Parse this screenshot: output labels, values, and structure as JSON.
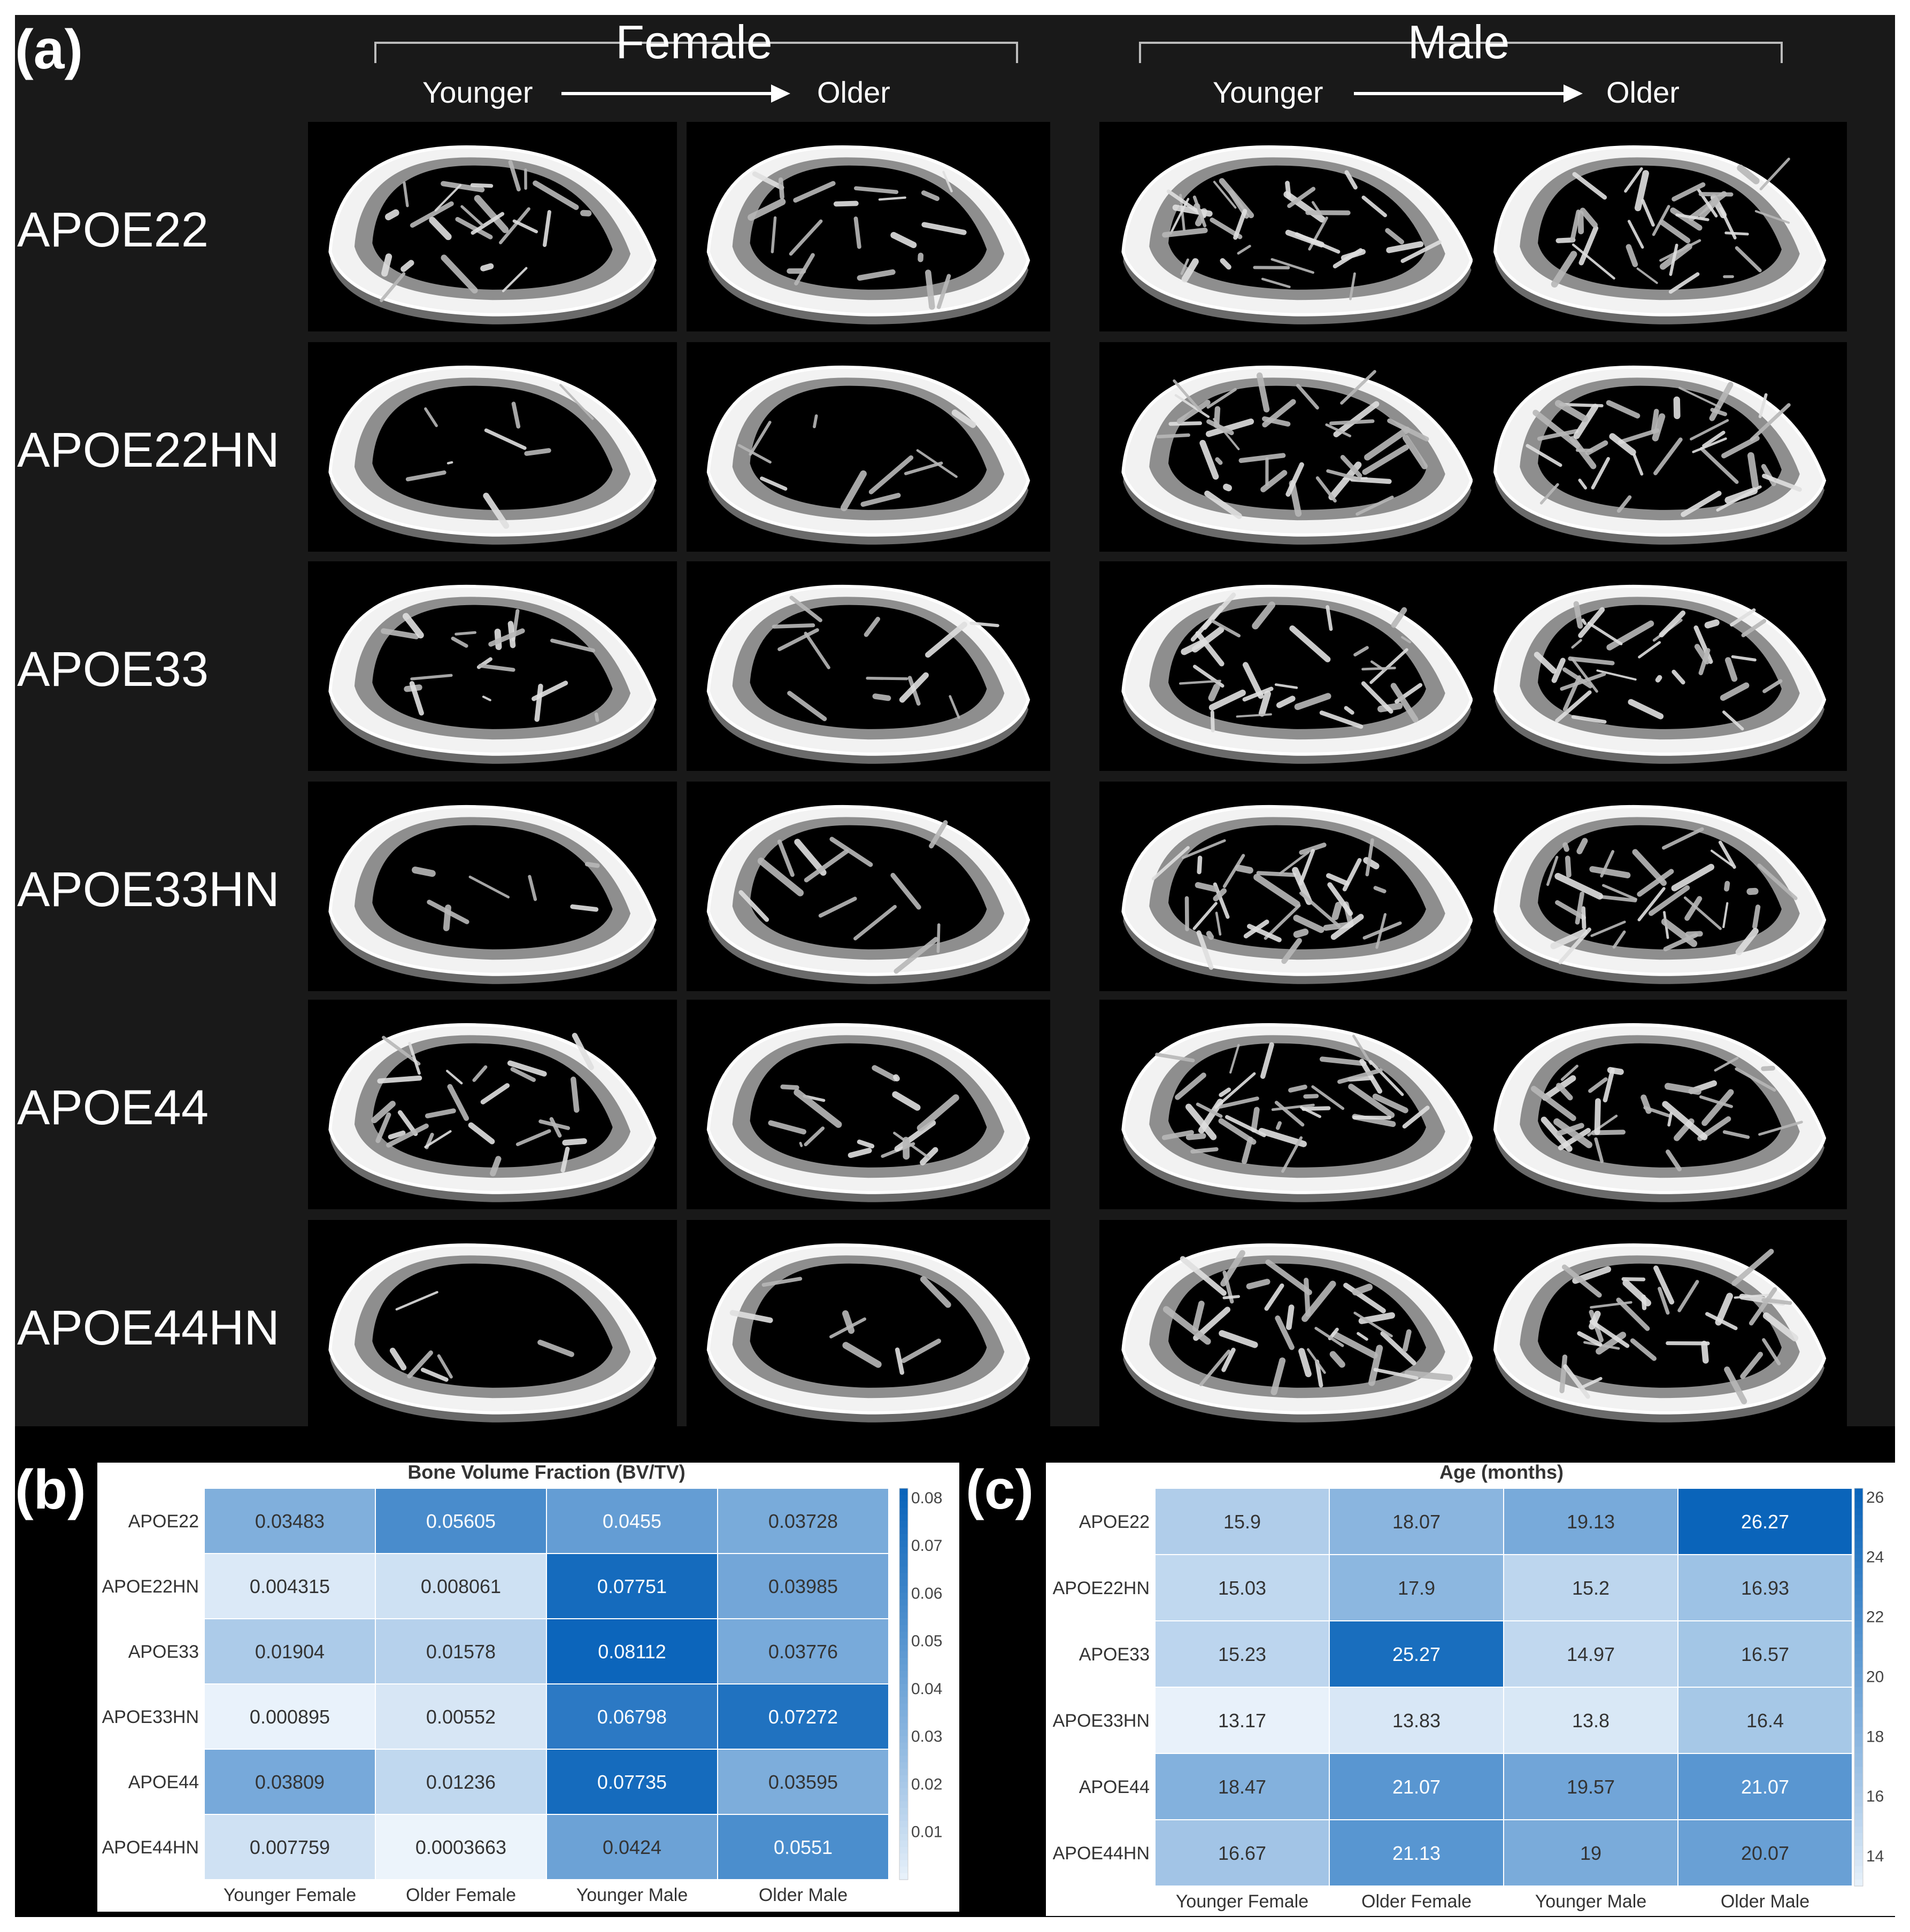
{
  "panel_a": {
    "label": "(a)",
    "sex_headers": [
      "Female",
      "Male"
    ],
    "age_younger": "Younger",
    "age_older": "Older",
    "rows": [
      "APOE22",
      "APOE22HN",
      "APOE33",
      "APOE33HN",
      "APOE44",
      "APOE44HN"
    ],
    "trabecular_density": [
      [
        0.55,
        0.45,
        0.9,
        0.85
      ],
      [
        0.12,
        0.18,
        0.95,
        0.92
      ],
      [
        0.4,
        0.25,
        0.8,
        0.8
      ],
      [
        0.08,
        0.22,
        0.95,
        0.9
      ],
      [
        0.6,
        0.35,
        0.95,
        0.75
      ],
      [
        0.06,
        0.12,
        0.85,
        0.8
      ]
    ]
  },
  "chart_data": [
    {
      "label": "(b)",
      "type": "heatmap",
      "title": "Bone Volume Fraction (BV/TV)",
      "rows": [
        "APOE22",
        "APOE22HN",
        "APOE33",
        "APOE33HN",
        "APOE44",
        "APOE44HN"
      ],
      "columns": [
        "Younger Female",
        "Older Female",
        "Younger Male",
        "Older Male"
      ],
      "values": [
        [
          "0.03483",
          "0.05605",
          "0.0455",
          "0.03728"
        ],
        [
          "0.004315",
          "0.008061",
          "0.07751",
          "0.03985"
        ],
        [
          "0.01904",
          "0.01578",
          "0.08112",
          "0.03776"
        ],
        [
          "0.000895",
          "0.00552",
          "0.06798",
          "0.07272"
        ],
        [
          "0.03809",
          "0.01236",
          "0.07735",
          "0.03595"
        ],
        [
          "0.007759",
          "0.0003663",
          "0.0424",
          "0.0551"
        ]
      ],
      "colorbar_min": 0.0,
      "colorbar_max": 0.082,
      "colorbar_ticks": [
        "0.08",
        "0.07",
        "0.06",
        "0.05",
        "0.04",
        "0.03",
        "0.02",
        "0.01"
      ],
      "colorbar_tick_values": [
        0.08,
        0.07,
        0.06,
        0.05,
        0.04,
        0.03,
        0.02,
        0.01
      ]
    },
    {
      "label": "(c)",
      "type": "heatmap",
      "title": "Age (months)",
      "rows": [
        "APOE22",
        "APOE22HN",
        "APOE33",
        "APOE33HN",
        "APOE44",
        "APOE44HN"
      ],
      "columns": [
        "Younger Female",
        "Older Female",
        "Younger Male",
        "Older Male"
      ],
      "values": [
        [
          "15.9",
          "18.07",
          "19.13",
          "26.27"
        ],
        [
          "15.03",
          "17.9",
          "15.2",
          "16.93"
        ],
        [
          "15.23",
          "25.27",
          "14.97",
          "16.57"
        ],
        [
          "13.17",
          "13.83",
          "13.8",
          "16.4"
        ],
        [
          "18.47",
          "21.07",
          "19.57",
          "21.07"
        ],
        [
          "16.67",
          "21.13",
          "19",
          "20.07"
        ]
      ],
      "colorbar_min": 13.0,
      "colorbar_max": 26.3,
      "colorbar_ticks": [
        "26",
        "24",
        "22",
        "20",
        "18",
        "16",
        "14"
      ],
      "colorbar_tick_values": [
        26,
        24,
        22,
        20,
        18,
        16,
        14
      ]
    }
  ],
  "colors": {
    "heat_low": "#eef5fc",
    "heat_high": "#0a64ba",
    "panel_bg": "#191919"
  }
}
